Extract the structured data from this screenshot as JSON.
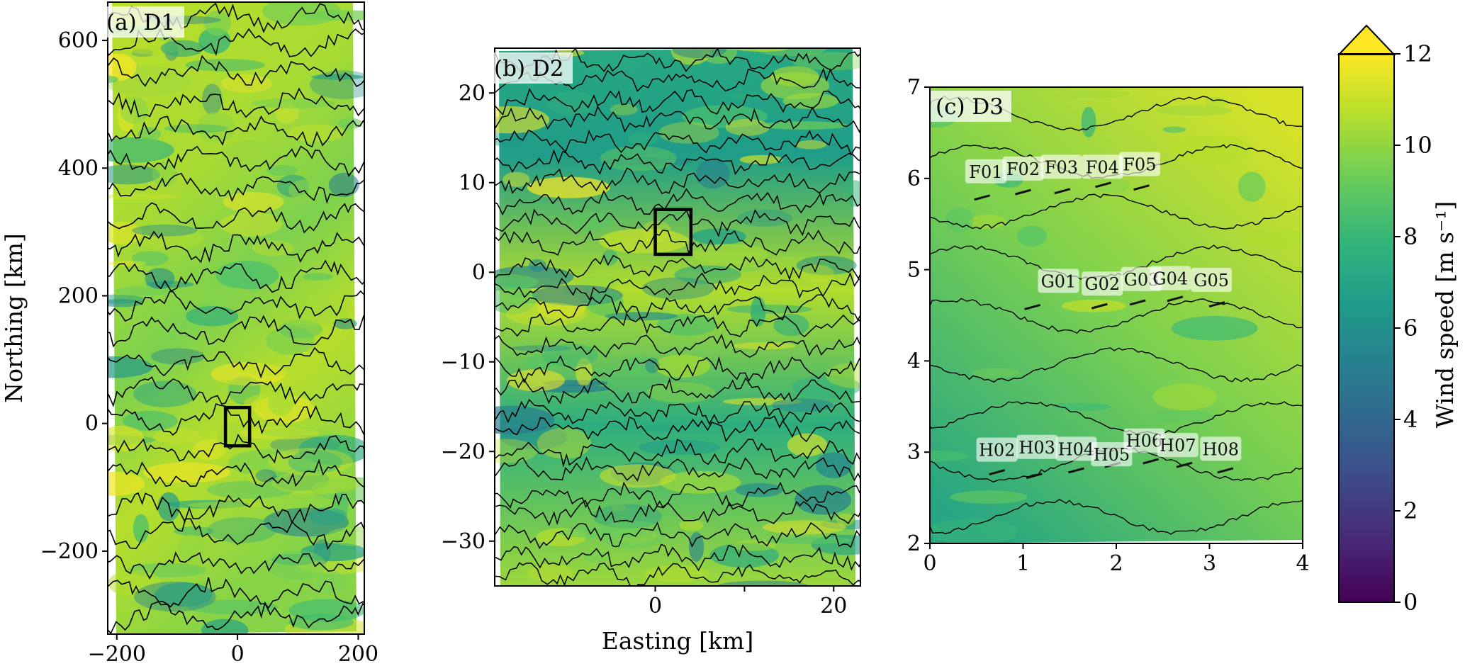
{
  "colors": {
    "colormap": [
      "#440154",
      "#482878",
      "#3e4a89",
      "#31688e",
      "#26828e",
      "#1f9e89",
      "#35b779",
      "#6ece58",
      "#b5de2b",
      "#fde725"
    ],
    "contour": "#000000",
    "box": "#000000",
    "leg": "#111111"
  },
  "chart_data": [
    {
      "type": "heatmap",
      "panel": "(a) D1",
      "panel_label": "(a) D1",
      "xlabel": "",
      "ylabel": "Northing [km]",
      "xlim": [
        -215,
        210
      ],
      "ylim": [
        -330,
        660
      ],
      "xticks": [
        -200,
        0,
        200
      ],
      "xtick_labels": [
        "−200",
        "0",
        "200"
      ],
      "yticks": [
        -200,
        0,
        200,
        400,
        600
      ],
      "ytick_labels": [
        "−200",
        "0",
        "200",
        "400",
        "600"
      ],
      "nested_box": {
        "x": [
          -20,
          20
        ],
        "y": [
          -35,
          25
        ]
      },
      "value_range": [
        3,
        12
      ]
    },
    {
      "type": "heatmap",
      "panel": "(b) D2",
      "panel_label": "(b) D2",
      "xlabel": "Easting [km]",
      "ylabel": "",
      "xlim": [
        -18,
        23
      ],
      "ylim": [
        -35,
        25
      ],
      "xticks": [
        0,
        10,
        20
      ],
      "xtick_labels": [
        "0",
        "",
        "20"
      ],
      "yticks": [
        -30,
        -20,
        -10,
        0,
        10,
        20
      ],
      "ytick_labels": [
        "−30",
        "−20",
        "−10",
        "0",
        "10",
        "20"
      ],
      "nested_box": {
        "x": [
          0,
          4
        ],
        "y": [
          2,
          7
        ]
      },
      "value_range": [
        3,
        12
      ]
    },
    {
      "type": "heatmap",
      "panel": "(c) D3",
      "panel_label": "(c) D3",
      "xlabel": "",
      "ylabel": "",
      "xlim": [
        0,
        4
      ],
      "ylim": [
        2,
        7
      ],
      "xticks": [
        0,
        1,
        2,
        3,
        4
      ],
      "xtick_labels": [
        "0",
        "1",
        "2",
        "3",
        "4"
      ],
      "yticks": [
        2,
        3,
        4,
        5,
        6,
        7
      ],
      "ytick_labels": [
        "2",
        "3",
        "4",
        "5",
        "6",
        "7"
      ],
      "value_range": [
        5,
        11
      ],
      "sites": [
        {
          "name": "F01",
          "x": 0.6,
          "y": 6.07,
          "leg_x": 0.56,
          "leg_y": 5.79
        },
        {
          "name": "F02",
          "x": 1.0,
          "y": 6.1,
          "leg_x": 1.0,
          "leg_y": 5.85
        },
        {
          "name": "F03",
          "x": 1.41,
          "y": 6.12,
          "leg_x": 1.42,
          "leg_y": 5.86
        },
        {
          "name": "F04",
          "x": 1.85,
          "y": 6.12,
          "leg_x": 1.86,
          "leg_y": 5.93
        },
        {
          "name": "F05",
          "x": 2.25,
          "y": 6.15,
          "leg_x": 2.27,
          "leg_y": 5.9
        },
        {
          "name": "G01",
          "x": 1.38,
          "y": 4.87,
          "leg_x": 1.1,
          "leg_y": 4.59
        },
        {
          "name": "G02",
          "x": 1.85,
          "y": 4.84,
          "leg_x": 1.82,
          "leg_y": 4.6
        },
        {
          "name": "G03",
          "x": 2.27,
          "y": 4.89,
          "leg_x": 2.23,
          "leg_y": 4.64
        },
        {
          "name": "G04",
          "x": 2.58,
          "y": 4.9,
          "leg_x": 2.63,
          "leg_y": 4.68
        },
        {
          "name": "G05",
          "x": 3.02,
          "y": 4.88,
          "leg_x": 3.08,
          "leg_y": 4.62
        },
        {
          "name": "H02",
          "x": 0.72,
          "y": 3.02,
          "leg_x": 0.72,
          "leg_y": 2.78
        },
        {
          "name": "H03",
          "x": 1.15,
          "y": 3.05,
          "leg_x": 1.12,
          "leg_y": 2.74
        },
        {
          "name": "H04",
          "x": 1.57,
          "y": 3.03,
          "leg_x": 1.57,
          "leg_y": 2.8
        },
        {
          "name": "H05",
          "x": 1.95,
          "y": 2.97,
          "leg_x": 1.96,
          "leg_y": 2.86
        },
        {
          "name": "H06",
          "x": 2.3,
          "y": 3.12,
          "leg_x": 2.37,
          "leg_y": 2.9
        },
        {
          "name": "H07",
          "x": 2.66,
          "y": 3.07,
          "leg_x": 2.73,
          "leg_y": 2.86
        },
        {
          "name": "H08",
          "x": 3.12,
          "y": 3.03,
          "leg_x": 3.17,
          "leg_y": 2.8
        }
      ]
    }
  ],
  "colorbar": {
    "label": "Wind speed [m s⁻¹]",
    "range": [
      0,
      12
    ],
    "ticks": [
      0,
      2,
      4,
      6,
      8,
      10,
      12
    ],
    "tick_labels": [
      "0",
      "2",
      "4",
      "6",
      "8",
      "10",
      "12"
    ],
    "extend": "max"
  }
}
